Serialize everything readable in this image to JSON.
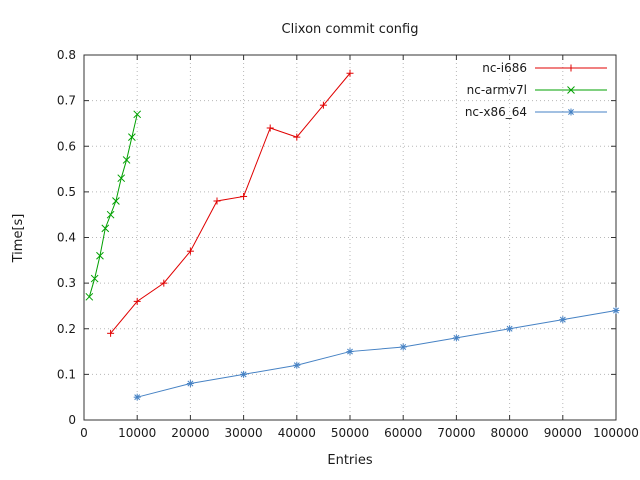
{
  "chart_data": {
    "type": "line",
    "title": "Clixon commit config",
    "xlabel": "Entries",
    "ylabel": "Time[s]",
    "xlim": [
      0,
      100000
    ],
    "ylim": [
      0,
      0.8
    ],
    "grid": true,
    "legend_position": "top-right",
    "x_ticks": [
      0,
      10000,
      20000,
      30000,
      40000,
      50000,
      60000,
      70000,
      80000,
      90000,
      100000
    ],
    "x_tick_labels": [
      "0",
      "10000",
      "20000",
      "30000",
      "40000",
      "50000",
      "60000",
      "70000",
      "80000",
      "90000",
      "100000"
    ],
    "y_ticks": [
      0,
      0.1,
      0.2,
      0.3,
      0.4,
      0.5,
      0.6,
      0.7,
      0.8
    ],
    "y_tick_labels": [
      "0",
      "0.1",
      "0.2",
      "0.3",
      "0.4",
      "0.5",
      "0.6",
      "0.7",
      "0.8"
    ],
    "colors": {
      "grid": "#b8b8b8",
      "border": "#333333",
      "text": "#1a1a1a"
    },
    "series": [
      {
        "name": "nc-i686",
        "color": "#e00000",
        "marker": "plus",
        "x": [
          5000,
          10000,
          15000,
          20000,
          25000,
          30000,
          35000,
          40000,
          45000,
          50000
        ],
        "y": [
          0.19,
          0.26,
          0.3,
          0.37,
          0.48,
          0.49,
          0.64,
          0.62,
          0.69,
          0.76
        ]
      },
      {
        "name": "nc-armv7l",
        "color": "#00a000",
        "marker": "cross",
        "x": [
          1000,
          2000,
          3000,
          4000,
          5000,
          6000,
          7000,
          8000,
          9000,
          10000
        ],
        "y": [
          0.27,
          0.31,
          0.36,
          0.42,
          0.45,
          0.48,
          0.53,
          0.57,
          0.62,
          0.67
        ]
      },
      {
        "name": "nc-x86_64",
        "color": "#4682c4",
        "marker": "star",
        "x": [
          10000,
          20000,
          30000,
          40000,
          50000,
          60000,
          70000,
          80000,
          90000,
          100000
        ],
        "y": [
          0.05,
          0.08,
          0.1,
          0.12,
          0.15,
          0.16,
          0.18,
          0.2,
          0.22,
          0.24
        ]
      }
    ]
  }
}
